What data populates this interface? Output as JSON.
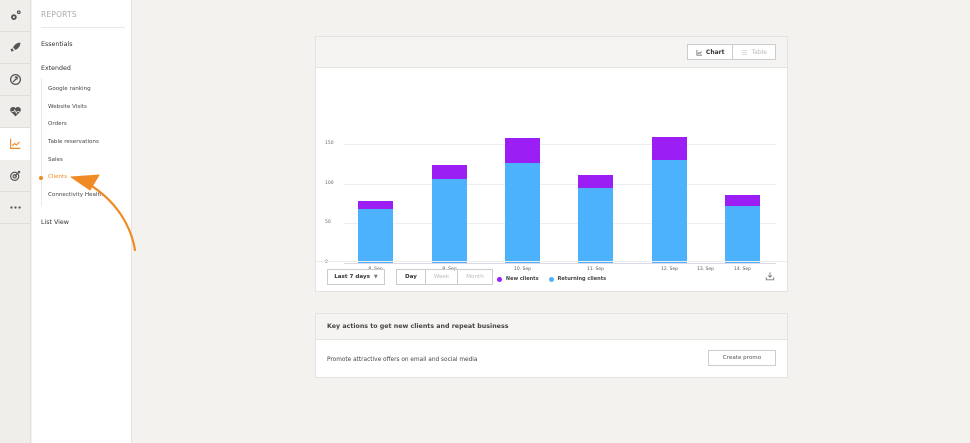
{
  "iconbar": {
    "items": [
      {
        "icon": "gears-icon",
        "active": false
      },
      {
        "icon": "rocket-icon",
        "active": false
      },
      {
        "icon": "share-circle-icon",
        "active": false
      },
      {
        "icon": "heart-pulse-icon",
        "active": false
      },
      {
        "icon": "line-chart-icon",
        "active": true
      },
      {
        "icon": "target-icon",
        "active": false
      },
      {
        "icon": "more-dots-icon",
        "active": false
      }
    ]
  },
  "sidebar": {
    "title": "REPORTS",
    "essentials": "Essentials",
    "extended": "Extended",
    "sub_items": [
      {
        "label": "Google ranking"
      },
      {
        "label": "Website Visits"
      },
      {
        "label": "Orders"
      },
      {
        "label": "Table reservations"
      },
      {
        "label": "Sales"
      },
      {
        "label": "Clients",
        "active": true
      },
      {
        "label": "Connectivity Health"
      }
    ],
    "list_view": "List View"
  },
  "chart_card": {
    "toggle": {
      "chart": "Chart",
      "table": "Table"
    },
    "range_label": "Last 7 days",
    "granularity": [
      "Day",
      "Week",
      "Month"
    ],
    "selected_granularity": "Day"
  },
  "chart_data": {
    "type": "bar",
    "stacked": true,
    "title": "",
    "xlabel": "",
    "ylabel": "",
    "categories": [
      "8. Sep",
      "9. Sep",
      "10. Sep",
      "11. Sep",
      "12. Sep",
      "13. Sep",
      "14. Sep"
    ],
    "series": [
      {
        "name": "New clients",
        "color": "#9b1ff5",
        "values": [
          10,
          17,
          31,
          17,
          29,
          0,
          14
        ]
      },
      {
        "name": "Returning clients",
        "color": "#4cb2fd",
        "values": [
          68,
          106,
          126,
          94,
          129,
          0,
          72
        ]
      }
    ],
    "yticks": [
      0,
      50,
      100,
      150
    ],
    "ylim": [
      0,
      160
    ],
    "grid": true,
    "legend_position": "bottom"
  },
  "actions_card": {
    "title": "Key actions to get new clients and repeat business",
    "row_text": "Promote attractive offers on email and social media",
    "button": "Create promo"
  },
  "colors": {
    "accent": "#f08a24",
    "new_clients": "#9b1ff5",
    "returning_clients": "#4cb2fd"
  }
}
